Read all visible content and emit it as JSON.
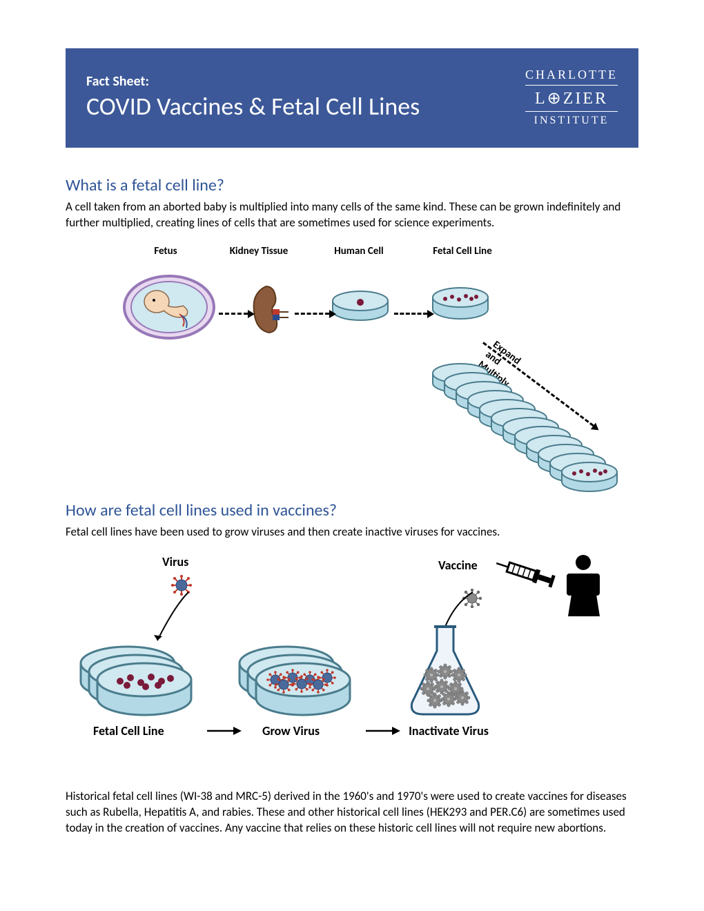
{
  "header": {
    "fact_sheet_label": "Fact Sheet:",
    "title": "COVID Vaccines & Fetal Cell Lines",
    "logo_line1": "CHARLOTTE",
    "logo_line2": "L⊕ZIER",
    "logo_line3": "INSTITUTE"
  },
  "colors": {
    "header_bg": "#3c5898",
    "heading_color": "#2e5496",
    "text_color": "#000000",
    "dish_water": "#b3d9e6",
    "dish_border": "#4a7c8c",
    "cell_color": "#7a1a3a",
    "virus_red": "#c0392b",
    "virus_gray": "#6a6a6a",
    "kidney": "#8c5a3c",
    "fetus_skin": "#f5d7b8",
    "fetus_womb": "#c8a8d8"
  },
  "section1": {
    "heading": "What is a fetal cell line?",
    "text": "A cell taken from an aborted baby is multiplied into many cells of the same kind. These can be grown indefinitely and further multiplied, creating lines of cells that are sometimes used for science experiments."
  },
  "diagram1": {
    "labels": {
      "fetus": "Fetus",
      "kidney": "Kidney Tissue",
      "humancell": "Human Cell",
      "fetalcell": "Fetal Cell Line",
      "expand": "Expand and Multiply"
    },
    "cascade_count": 12
  },
  "section2": {
    "heading": "How are fetal cell lines used in vaccines?",
    "text": "Fetal cell lines have been used to grow viruses and then create inactive viruses for vaccines."
  },
  "diagram2": {
    "labels": {
      "virus": "Virus",
      "vaccine": "Vaccine",
      "fetal_cell_line": "Fetal Cell Line",
      "grow_virus": "Grow Virus",
      "inactivate_virus": "Inactivate Virus"
    }
  },
  "footer_text": "Historical fetal cell lines (WI-38 and MRC-5) derived in the 1960's and 1970's were used to create vaccines for diseases such as Rubella, Hepatitis A, and rabies. These and other historical cell lines (HEK293 and PER.C6) are sometimes used today in the creation of vaccines. Any vaccine that relies on these historic cell lines will not require new abortions."
}
